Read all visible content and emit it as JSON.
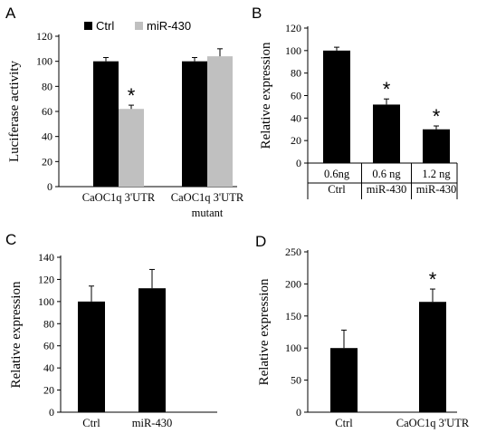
{
  "chart_data": [
    {
      "panel": "A",
      "type": "bar",
      "ylabel": "Luciferase activity",
      "ylim": [
        0,
        120
      ],
      "yticks": [
        0,
        20,
        40,
        60,
        80,
        100,
        120
      ],
      "categories": [
        [
          "CaOC1q 3'UTR"
        ],
        [
          "CaOC1q 3'UTR",
          "mutant"
        ]
      ],
      "legend": "top-left",
      "series": [
        {
          "name": "Ctrl",
          "color": "#000000",
          "values": [
            100,
            100
          ],
          "errors": [
            3,
            3
          ]
        },
        {
          "name": "miR-430",
          "color": "#c0c0c0",
          "values": [
            62,
            104
          ],
          "errors": [
            3,
            6
          ]
        }
      ],
      "annotations": [
        {
          "series": 1,
          "category": 0,
          "text": "*"
        }
      ]
    },
    {
      "panel": "B",
      "type": "bar",
      "ylabel": "Relative expression",
      "ylim": [
        0,
        120
      ],
      "yticks": [
        0,
        20,
        40,
        60,
        80,
        100,
        120
      ],
      "categories": [
        [
          "0.6ng",
          "Ctrl"
        ],
        [
          "0.6 ng",
          "miR-430"
        ],
        [
          "1.2 ng",
          "miR-430"
        ]
      ],
      "series": [
        {
          "color": "#000000",
          "values": [
            100,
            52,
            30
          ],
          "errors": [
            3,
            5,
            3
          ]
        }
      ],
      "annotations": [
        {
          "category": 1,
          "text": "*"
        },
        {
          "category": 2,
          "text": "*"
        }
      ]
    },
    {
      "panel": "C",
      "type": "bar",
      "ylabel": "Relative expression",
      "ylim": [
        0,
        140
      ],
      "yticks": [
        0,
        20,
        40,
        60,
        80,
        100,
        120,
        140
      ],
      "categories": [
        [
          "Ctrl"
        ],
        [
          "miR-430"
        ]
      ],
      "series": [
        {
          "color": "#000000",
          "values": [
            100,
            112
          ],
          "errors": [
            14,
            17
          ]
        }
      ],
      "annotations": []
    },
    {
      "panel": "D",
      "type": "bar",
      "ylabel": "Relative expression",
      "ylim": [
        0,
        250
      ],
      "yticks": [
        0,
        50,
        100,
        150,
        200,
        250
      ],
      "categories": [
        [
          "Ctrl"
        ],
        [
          "CaOC1q 3'UTR"
        ]
      ],
      "series": [
        {
          "color": "#000000",
          "values": [
            100,
            172
          ],
          "errors": [
            28,
            20
          ]
        }
      ],
      "annotations": [
        {
          "category": 1,
          "text": "*"
        }
      ]
    }
  ]
}
